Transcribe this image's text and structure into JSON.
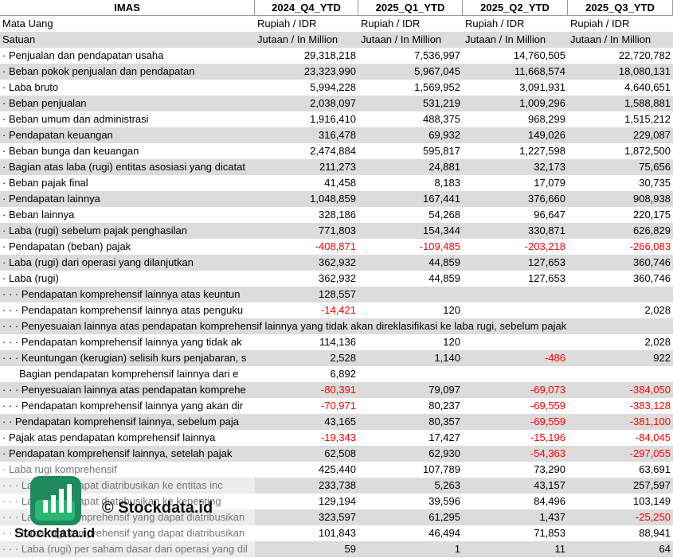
{
  "header": {
    "title": "IMAS",
    "columns": [
      "2024_Q4_YTD",
      "2025_Q1_YTD",
      "2025_Q2_YTD",
      "2025_Q3_YTD"
    ]
  },
  "meta_rows": [
    {
      "label": "Mata Uang",
      "values": [
        "Rupiah / IDR",
        "Rupiah / IDR",
        "Rupiah / IDR",
        "Rupiah / IDR"
      ]
    },
    {
      "label": "Satuan",
      "values": [
        "Jutaan / In Million",
        "Jutaan / In Million",
        "Jutaan / In Million",
        "Jutaan / In Million"
      ]
    }
  ],
  "rows": [
    {
      "label": "· Penjualan dan pendapatan usaha",
      "values": [
        "29,318,218",
        "7,536,997",
        "14,760,505",
        "22,720,782"
      ]
    },
    {
      "label": "· Beban pokok penjualan dan pendapatan",
      "values": [
        "23,323,990",
        "5,967,045",
        "11,668,574",
        "18,080,131"
      ]
    },
    {
      "label": "· Laba bruto",
      "values": [
        "5,994,228",
        "1,569,952",
        "3,091,931",
        "4,640,651"
      ]
    },
    {
      "label": "· Beban penjualan",
      "values": [
        "2,038,097",
        "531,219",
        "1,009,296",
        "1,588,881"
      ]
    },
    {
      "label": "· Beban umum dan administrasi",
      "values": [
        "1,916,410",
        "488,375",
        "968,299",
        "1,515,212"
      ]
    },
    {
      "label": "· Pendapatan keuangan",
      "values": [
        "316,478",
        "69,932",
        "149,026",
        "229,087"
      ]
    },
    {
      "label": "· Beban bunga dan keuangan",
      "values": [
        "2,474,884",
        "595,817",
        "1,227,598",
        "1,872,500"
      ]
    },
    {
      "label": "· Bagian atas laba (rugi) entitas asosiasi yang dicatat",
      "values": [
        "211,273",
        "24,881",
        "32,173",
        "75,656"
      ]
    },
    {
      "label": "· Beban pajak final",
      "values": [
        "41,458",
        "8,183",
        "17,079",
        "30,735"
      ]
    },
    {
      "label": "· Pendapatan lainnya",
      "values": [
        "1,048,859",
        "167,441",
        "376,660",
        "908,938"
      ]
    },
    {
      "label": "· Beban lainnya",
      "values": [
        "328,186",
        "54,268",
        "96,647",
        "220,175"
      ]
    },
    {
      "label": "· Laba (rugi) sebelum pajak penghasilan",
      "values": [
        "771,803",
        "154,344",
        "330,871",
        "626,829"
      ]
    },
    {
      "label": "· Pendapatan (beban) pajak",
      "values": [
        "-408,871",
        "-109,485",
        "-203,218",
        "-266,083"
      ]
    },
    {
      "label": "· Laba (rugi) dari operasi yang dilanjutkan",
      "values": [
        "362,932",
        "44,859",
        "127,653",
        "360,746"
      ]
    },
    {
      "label": "· Laba (rugi)",
      "values": [
        "362,932",
        "44,859",
        "127,653",
        "360,746"
      ]
    },
    {
      "label": "· · · Pendapatan komprehensif lainnya atas keuntun",
      "values": [
        "128,557",
        null,
        null,
        null
      ]
    },
    {
      "label": "· · · Pendapatan komprehensif lainnya atas penguku",
      "values": [
        "-14,421",
        "120",
        null,
        "2,028"
      ]
    },
    {
      "label": "· · · Penyesuaian lainnya atas pendapatan komprehensif lainnya yang tidak akan direklasifikasi ke laba rugi, sebelum pajak",
      "values": [
        null,
        null,
        null,
        null
      ]
    },
    {
      "label": "· · · Pendapatan komprehensif lainnya yang tidak ak",
      "values": [
        "114,136",
        "120",
        null,
        "2,028"
      ]
    },
    {
      "label": "· · · Keuntungan (kerugian) selisih kurs penjabaran, s",
      "values": [
        "2,528",
        "1,140",
        "-486",
        "922"
      ]
    },
    {
      "label": "Bagian pendapatan komprehensif lainnya dari e",
      "values": [
        "6,892",
        null,
        null,
        null
      ]
    },
    {
      "label": "· · · Penyesuaian lainnya atas pendapatan komprehe",
      "values": [
        "-80,391",
        "79,097",
        "-69,073",
        "-384,050"
      ]
    },
    {
      "label": "· · · Pendapatan komprehensif lainnya yang akan dir",
      "values": [
        "-70,971",
        "80,237",
        "-69,559",
        "-383,128"
      ]
    },
    {
      "label": "· · Pendapatan komprehensif lainnya, sebelum paja",
      "values": [
        "43,165",
        "80,357",
        "-69,559",
        "-381,100"
      ]
    },
    {
      "label": "· Pajak atas pendapatan komprehensif lainnya",
      "values": [
        "-19,343",
        "17,427",
        "-15,196",
        "-84,045"
      ]
    },
    {
      "label": "· Pendapatan komprehensif lainnya, setelah pajak",
      "values": [
        "62,508",
        "62,930",
        "-54,363",
        "-297,055"
      ]
    },
    {
      "label": "· Laba rugi komprehensif",
      "values": [
        "425,440",
        "107,789",
        "73,290",
        "63,691"
      ]
    },
    {
      "label": "· · · Laba yang dapat diatribusikan ke entitas inc",
      "values": [
        "233,738",
        "5,263",
        "43,157",
        "257,597"
      ]
    },
    {
      "label": "· · · Laba yang dapat diatribusikan ke kepenting",
      "values": [
        "129,194",
        "39,596",
        "84,496",
        "103,149"
      ]
    },
    {
      "label": "· · · Laba rugi komprehensif yang dapat diatribusikan",
      "values": [
        "323,597",
        "61,295",
        "1,437",
        "-25,250"
      ]
    },
    {
      "label": "· · · Laba rugi komprehensif yang dapat diatribusikan",
      "values": [
        "101,843",
        "46,494",
        "71,853",
        "88,941"
      ]
    },
    {
      "label": "· · · Laba (rugi) per saham dasar dari operasi yang dil",
      "values": [
        "59",
        "1",
        "11",
        "64"
      ]
    }
  ],
  "watermark": {
    "caption": "© Stockdata.id",
    "brand": "Stockdata.id"
  }
}
